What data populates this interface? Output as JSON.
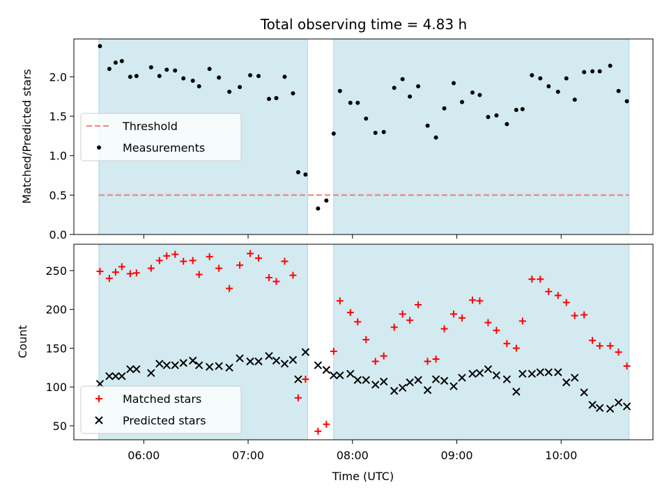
{
  "title": "Total observing time = 4.83 h",
  "chart_data": [
    {
      "type": "scatter",
      "ylabel": "Matched/Predicted stars",
      "ylim": [
        0,
        2.48
      ],
      "yticks": [
        "0.0",
        "0.5",
        "1.0",
        "1.5",
        "2.0"
      ],
      "ytick_values": [
        0,
        0.5,
        1.0,
        1.5,
        2.0
      ],
      "legend": {
        "placement": "center-left",
        "entries": [
          {
            "label": "Threshold",
            "style": "dashed-line",
            "color": "#f08080"
          },
          {
            "label": "Measurements",
            "style": "dot",
            "color": "#000000"
          }
        ]
      },
      "threshold": 0.5,
      "series": [
        {
          "name": "Measurements",
          "color": "#000000",
          "marker": "dot",
          "x": [
            5.58,
            5.67,
            5.73,
            5.79,
            5.87,
            5.93,
            6.07,
            6.15,
            6.22,
            6.3,
            6.38,
            6.47,
            6.53,
            6.63,
            6.72,
            6.82,
            6.92,
            7.02,
            7.1,
            7.2,
            7.27,
            7.35,
            7.43,
            7.48,
            7.55,
            7.67,
            7.75,
            7.82,
            7.88,
            7.98,
            8.05,
            8.13,
            8.22,
            8.3,
            8.4,
            8.48,
            8.55,
            8.63,
            8.72,
            8.8,
            8.88,
            8.97,
            9.05,
            9.15,
            9.22,
            9.3,
            9.38,
            9.48,
            9.57,
            9.63,
            9.72,
            9.8,
            9.88,
            9.97,
            10.05,
            10.13,
            10.22,
            10.3,
            10.37,
            10.47,
            10.55,
            10.63
          ],
          "y": [
            2.39,
            2.1,
            2.18,
            2.2,
            2.0,
            2.01,
            2.12,
            2.01,
            2.09,
            2.08,
            1.98,
            1.95,
            1.88,
            2.1,
            1.99,
            1.81,
            1.87,
            2.02,
            2.01,
            1.72,
            1.73,
            2.0,
            1.79,
            0.79,
            0.76,
            0.33,
            0.43,
            1.28,
            1.82,
            1.67,
            1.67,
            1.47,
            1.29,
            1.3,
            1.86,
            1.97,
            1.75,
            1.88,
            1.38,
            1.23,
            1.6,
            1.92,
            1.68,
            1.8,
            1.77,
            1.49,
            1.51,
            1.4,
            1.58,
            1.59,
            2.02,
            1.98,
            1.88,
            1.81,
            1.98,
            1.71,
            2.06,
            2.07,
            2.07,
            2.14,
            1.82,
            1.69
          ]
        }
      ],
      "shaded_regions": [
        [
          5.57,
          7.57
        ],
        [
          7.82,
          10.65
        ]
      ],
      "x_range": [
        5.57,
        10.65
      ]
    },
    {
      "type": "scatter",
      "xlabel": "Time (UTC)",
      "ylabel": "Count",
      "ylim": [
        32,
        284
      ],
      "yticks": [
        "50",
        "100",
        "150",
        "200",
        "250"
      ],
      "ytick_values": [
        50,
        100,
        150,
        200,
        250
      ],
      "xticks": [
        "06:00",
        "07:00",
        "08:00",
        "09:00",
        "10:00"
      ],
      "xtick_values": [
        6,
        7,
        8,
        9,
        10
      ],
      "xlim": [
        5.33,
        10.88
      ],
      "legend": {
        "placement": "bottom-left",
        "entries": [
          {
            "label": "Matched stars",
            "style": "plus",
            "color": "#ff0000"
          },
          {
            "label": "Predicted stars",
            "style": "x",
            "color": "#000000"
          }
        ]
      },
      "series": [
        {
          "name": "Matched stars",
          "color": "#ff0000",
          "marker": "plus",
          "x": [
            5.58,
            5.67,
            5.73,
            5.79,
            5.87,
            5.93,
            6.07,
            6.15,
            6.22,
            6.3,
            6.38,
            6.47,
            6.53,
            6.63,
            6.72,
            6.82,
            6.92,
            7.02,
            7.1,
            7.2,
            7.27,
            7.35,
            7.43,
            7.48,
            7.55,
            7.67,
            7.75,
            7.82,
            7.88,
            7.98,
            8.05,
            8.13,
            8.22,
            8.3,
            8.4,
            8.48,
            8.55,
            8.63,
            8.72,
            8.8,
            8.88,
            8.97,
            9.05,
            9.15,
            9.22,
            9.3,
            9.38,
            9.48,
            9.57,
            9.63,
            9.72,
            9.8,
            9.88,
            9.97,
            10.05,
            10.13,
            10.22,
            10.3,
            10.37,
            10.47,
            10.55,
            10.63
          ],
          "y": [
            249,
            240,
            248,
            255,
            246,
            247,
            253,
            263,
            269,
            271,
            262,
            263,
            245,
            268,
            253,
            227,
            257,
            272,
            266,
            241,
            236,
            262,
            244,
            86,
            110,
            43,
            52,
            146,
            211,
            196,
            184,
            161,
            133,
            140,
            177,
            194,
            186,
            206,
            133,
            136,
            175,
            194,
            189,
            212,
            211,
            183,
            173,
            156,
            150,
            185,
            239,
            239,
            223,
            218,
            209,
            192,
            193,
            160,
            153,
            153,
            145,
            127
          ]
        },
        {
          "name": "Predicted stars",
          "color": "#000000",
          "marker": "x",
          "x": [
            5.58,
            5.67,
            5.73,
            5.79,
            5.87,
            5.93,
            6.07,
            6.15,
            6.22,
            6.3,
            6.38,
            6.47,
            6.53,
            6.63,
            6.72,
            6.82,
            6.92,
            7.02,
            7.1,
            7.2,
            7.27,
            7.35,
            7.43,
            7.48,
            7.55,
            7.67,
            7.75,
            7.82,
            7.88,
            7.98,
            8.05,
            8.13,
            8.22,
            8.3,
            8.4,
            8.48,
            8.55,
            8.63,
            8.72,
            8.8,
            8.88,
            8.97,
            9.05,
            9.15,
            9.22,
            9.3,
            9.38,
            9.48,
            9.57,
            9.63,
            9.72,
            9.8,
            9.88,
            9.97,
            10.05,
            10.13,
            10.22,
            10.3,
            10.37,
            10.47,
            10.55,
            10.63
          ],
          "y": [
            104,
            114,
            114,
            114,
            123,
            123,
            118,
            130,
            128,
            128,
            131,
            134,
            128,
            126,
            127,
            125,
            137,
            133,
            133,
            140,
            134,
            130,
            135,
            110,
            145,
            128,
            122,
            115,
            115,
            117,
            109,
            109,
            103,
            107,
            95,
            99,
            106,
            109,
            96,
            110,
            108,
            101,
            112,
            117,
            118,
            123,
            115,
            110,
            94,
            117,
            117,
            119,
            119,
            119,
            106,
            112,
            93,
            77,
            73,
            72,
            80,
            75
          ]
        }
      ],
      "shaded_regions": [
        [
          5.57,
          7.57
        ],
        [
          7.82,
          10.65
        ]
      ]
    }
  ]
}
